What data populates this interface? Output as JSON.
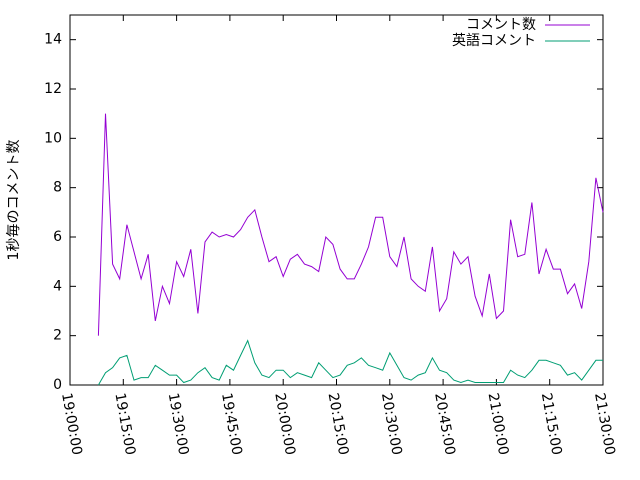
{
  "chart_data": {
    "type": "line",
    "y_label": "1秒毎のコメント数",
    "x": [
      "19:08:00",
      "19:10:00",
      "19:12:00",
      "19:14:00",
      "19:16:00",
      "19:18:00",
      "19:20:00",
      "19:22:00",
      "19:24:00",
      "19:26:00",
      "19:28:00",
      "19:30:00",
      "19:32:00",
      "19:34:00",
      "19:36:00",
      "19:38:00",
      "19:40:00",
      "19:42:00",
      "19:44:00",
      "19:46:00",
      "19:48:00",
      "19:50:00",
      "19:52:00",
      "19:54:00",
      "19:56:00",
      "19:58:00",
      "20:00:00",
      "20:02:00",
      "20:04:00",
      "20:06:00",
      "20:08:00",
      "20:10:00",
      "20:12:00",
      "20:14:00",
      "20:16:00",
      "20:18:00",
      "20:20:00",
      "20:22:00",
      "20:24:00",
      "20:26:00",
      "20:28:00",
      "20:30:00",
      "20:32:00",
      "20:34:00",
      "20:36:00",
      "20:38:00",
      "20:40:00",
      "20:42:00",
      "20:44:00",
      "20:46:00",
      "20:48:00",
      "20:50:00",
      "20:52:00",
      "20:54:00",
      "20:56:00",
      "20:58:00",
      "21:00:00",
      "21:02:00",
      "21:04:00",
      "21:06:00",
      "21:08:00",
      "21:10:00",
      "21:12:00",
      "21:14:00",
      "21:16:00",
      "21:18:00",
      "21:20:00",
      "21:22:00",
      "21:24:00",
      "21:26:00",
      "21:28:00",
      "21:30:00"
    ],
    "series": [
      {
        "name": "コメント数",
        "color": "#9400d3",
        "values": [
          2.0,
          11.0,
          4.9,
          4.3,
          6.5,
          5.4,
          4.3,
          5.3,
          2.6,
          4.0,
          3.3,
          5.0,
          4.4,
          5.5,
          2.9,
          5.8,
          6.2,
          6.0,
          6.1,
          6.0,
          6.3,
          6.8,
          7.1,
          6.0,
          5.0,
          5.2,
          4.4,
          5.1,
          5.3,
          4.9,
          4.8,
          4.6,
          6.0,
          5.7,
          4.7,
          4.3,
          4.3,
          4.9,
          5.6,
          6.8,
          6.8,
          5.2,
          4.8,
          6.0,
          4.3,
          4.0,
          3.8,
          5.6,
          3.0,
          3.5,
          5.4,
          4.9,
          5.2,
          3.6,
          2.8,
          4.5,
          2.7,
          3.0,
          6.7,
          5.2,
          5.3,
          7.4,
          4.5,
          5.5,
          4.7,
          4.7,
          3.7,
          4.1,
          3.1,
          5.0,
          8.4,
          7.0
        ]
      },
      {
        "name": "英語コメント",
        "color": "#009e73",
        "values": [
          0.0,
          0.5,
          0.7,
          1.1,
          1.2,
          0.2,
          0.3,
          0.3,
          0.8,
          0.6,
          0.4,
          0.4,
          0.1,
          0.2,
          0.5,
          0.7,
          0.3,
          0.2,
          0.8,
          0.6,
          1.2,
          1.8,
          0.9,
          0.4,
          0.3,
          0.6,
          0.6,
          0.3,
          0.5,
          0.4,
          0.3,
          0.9,
          0.6,
          0.3,
          0.4,
          0.8,
          0.9,
          1.1,
          0.8,
          0.7,
          0.6,
          1.3,
          0.8,
          0.3,
          0.2,
          0.4,
          0.5,
          1.1,
          0.6,
          0.5,
          0.2,
          0.1,
          0.2,
          0.1,
          0.1,
          0.1,
          0.1,
          0.1,
          0.6,
          0.4,
          0.3,
          0.6,
          1.0,
          1.0,
          0.9,
          0.8,
          0.4,
          0.5,
          0.2,
          0.6,
          1.0,
          1.0
        ]
      }
    ],
    "xlim": [
      "19:00:00",
      "21:30:00"
    ],
    "xticks": [
      "19:00:00",
      "19:15:00",
      "19:30:00",
      "19:45:00",
      "20:00:00",
      "20:15:00",
      "20:30:00",
      "20:45:00",
      "21:00:00",
      "21:15:00",
      "21:30:00"
    ],
    "ylim": [
      0,
      15
    ],
    "yticks": [
      0,
      2,
      4,
      6,
      8,
      10,
      12,
      14
    ],
    "legend": "top-right"
  }
}
